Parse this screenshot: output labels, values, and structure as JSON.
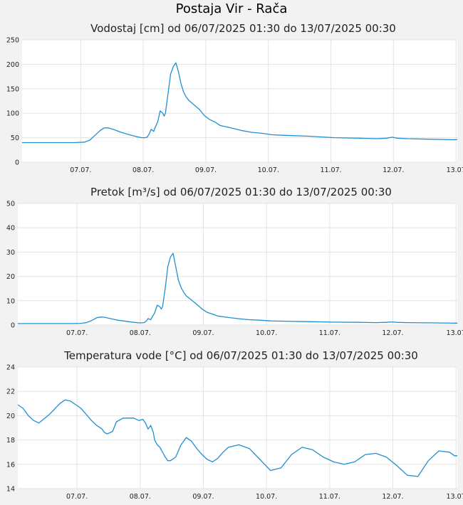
{
  "page": {
    "title": "Postaja Vir - Rača"
  },
  "colors": {
    "series": "#1f8fd2",
    "grid": "#e3e3e3",
    "plot_bg": "#ffffff",
    "page_bg": "#f2f2f2"
  },
  "chart_data": [
    {
      "type": "line",
      "title": "Vodostaj [cm] od 06/07/2025 01:30 do 13/07/2025 00:30",
      "xlabel": "",
      "ylabel": "",
      "xlim": [
        0,
        167
      ],
      "ylim": [
        0,
        250
      ],
      "yticks": [
        0,
        50,
        100,
        150,
        200,
        250
      ],
      "xticks": [
        {
          "x": 22.5,
          "label": "07.07."
        },
        {
          "x": 46.5,
          "label": "08.07."
        },
        {
          "x": 70.5,
          "label": "09.07."
        },
        {
          "x": 94.5,
          "label": "10.07."
        },
        {
          "x": 118.5,
          "label": "11.07."
        },
        {
          "x": 142.5,
          "label": "12.07."
        },
        {
          "x": 166.5,
          "label": "13.07"
        }
      ],
      "grid": true,
      "series": [
        {
          "x": [
            0,
            20,
            24,
            26,
            28,
            30,
            31.5,
            33,
            35,
            38,
            42,
            44,
            46,
            47,
            48,
            49,
            49.5,
            50.5,
            51,
            52,
            53,
            54,
            54.5,
            55,
            56,
            57,
            58,
            59,
            60,
            61,
            62,
            63,
            64,
            66,
            68,
            70,
            72,
            74,
            76,
            80,
            84,
            88,
            92,
            96,
            100,
            110,
            120,
            130,
            136,
            140,
            142,
            144,
            148,
            156,
            166,
            167
          ],
          "y": [
            40,
            40,
            41,
            45,
            55,
            65,
            70,
            70,
            67,
            61,
            55,
            52,
            50,
            50,
            51,
            60,
            67,
            63,
            70,
            82,
            105,
            100,
            94,
            100,
            140,
            180,
            195,
            203,
            185,
            160,
            143,
            133,
            126,
            117,
            108,
            95,
            87,
            82,
            75,
            70,
            65,
            61,
            59,
            56,
            55,
            53,
            50,
            49,
            48,
            49,
            51,
            49,
            48,
            47,
            46,
            46
          ]
        }
      ]
    },
    {
      "type": "line",
      "title": "Pretok [m³/s] od 06/07/2025 01:30 do 13/07/2025 00:30",
      "xlabel": "",
      "ylabel": "",
      "xlim": [
        0,
        167
      ],
      "ylim": [
        0,
        50
      ],
      "yticks": [
        0,
        10,
        20,
        30,
        40,
        50
      ],
      "xticks": [
        {
          "x": 22.5,
          "label": "07.07."
        },
        {
          "x": 46.5,
          "label": "08.07."
        },
        {
          "x": 70.5,
          "label": "09.07."
        },
        {
          "x": 94.5,
          "label": "10.07."
        },
        {
          "x": 118.5,
          "label": "11.07."
        },
        {
          "x": 142.5,
          "label": "12.07."
        },
        {
          "x": 166.5,
          "label": "13.07"
        }
      ],
      "grid": true,
      "series": [
        {
          "x": [
            0,
            20,
            24,
            26,
            28,
            30,
            31.5,
            33,
            35,
            38,
            42,
            44,
            46,
            47,
            48,
            49,
            49.5,
            50.5,
            51,
            52,
            53,
            54,
            54.5,
            55,
            56,
            57,
            58,
            59,
            60,
            61,
            62,
            63,
            64,
            66,
            68,
            70,
            72,
            74,
            76,
            80,
            84,
            88,
            92,
            96,
            100,
            110,
            120,
            130,
            136,
            140,
            142,
            144,
            148,
            156,
            166,
            167
          ],
          "y": [
            0.6,
            0.6,
            0.7,
            1.0,
            1.8,
            3.0,
            3.3,
            3.2,
            2.7,
            2.0,
            1.4,
            1.1,
            0.9,
            0.9,
            1.0,
            1.8,
            2.7,
            2.2,
            3.2,
            5.0,
            8.2,
            7.5,
            6.6,
            7.5,
            15.0,
            24.0,
            28.0,
            29.5,
            24.0,
            18.5,
            15.5,
            13.5,
            12.0,
            10.3,
            8.5,
            6.6,
            5.2,
            4.5,
            3.7,
            3.1,
            2.6,
            2.2,
            2.0,
            1.7,
            1.6,
            1.4,
            1.2,
            1.1,
            1.0,
            1.1,
            1.3,
            1.1,
            1.0,
            0.9,
            0.8,
            0.8
          ]
        }
      ]
    },
    {
      "type": "line",
      "title": "Temperatura vode [°C] od 06/07/2025 01:30 do 13/07/2025 00:30",
      "xlabel": "",
      "ylabel": "",
      "xlim": [
        0,
        167
      ],
      "ylim": [
        14,
        24
      ],
      "yticks": [
        14,
        16,
        18,
        20,
        22,
        24
      ],
      "xticks": [
        {
          "x": 22.5,
          "label": "07.07."
        },
        {
          "x": 46.5,
          "label": "08.07."
        },
        {
          "x": 70.5,
          "label": "09.07."
        },
        {
          "x": 94.5,
          "label": "10.07."
        },
        {
          "x": 118.5,
          "label": "11.07."
        },
        {
          "x": 142.5,
          "label": "12.07."
        },
        {
          "x": 166.5,
          "label": "13.07"
        }
      ],
      "grid": true,
      "series": [
        {
          "x": [
            0,
            2,
            4,
            6,
            8,
            12,
            16,
            18,
            20,
            22,
            24,
            26,
            28,
            30,
            32,
            33,
            34,
            36,
            37.5,
            40,
            44,
            46,
            47.5,
            48.5,
            49.5,
            50.5,
            51.5,
            52,
            53,
            54,
            55,
            56,
            57,
            58,
            60,
            62,
            64,
            66,
            68,
            70,
            72,
            74,
            76,
            78,
            80,
            84,
            88,
            92,
            96,
            100,
            104,
            108,
            112,
            116,
            120,
            124,
            128,
            132,
            136,
            140,
            144,
            148,
            152,
            156,
            160,
            164,
            166,
            167
          ],
          "y": [
            20.9,
            20.6,
            20.0,
            19.6,
            19.4,
            20.1,
            21.0,
            21.3,
            21.2,
            20.9,
            20.6,
            20.1,
            19.6,
            19.2,
            18.9,
            18.6,
            18.5,
            18.7,
            19.5,
            19.8,
            19.8,
            19.6,
            19.7,
            19.4,
            18.9,
            19.2,
            18.6,
            18.0,
            17.6,
            17.4,
            17.0,
            16.6,
            16.3,
            16.3,
            16.6,
            17.6,
            18.2,
            17.9,
            17.3,
            16.8,
            16.4,
            16.2,
            16.5,
            17.0,
            17.4,
            17.6,
            17.3,
            16.4,
            15.5,
            15.7,
            16.8,
            17.4,
            17.2,
            16.6,
            16.2,
            16.0,
            16.2,
            16.8,
            16.9,
            16.6,
            15.9,
            15.1,
            15.0,
            16.3,
            17.1,
            17.0,
            16.7,
            16.7
          ]
        }
      ]
    }
  ]
}
